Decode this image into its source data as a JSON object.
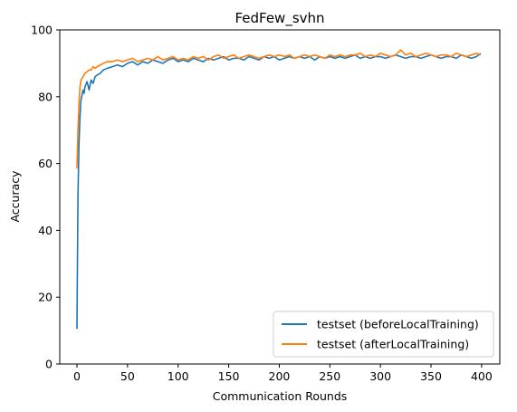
{
  "chart_data": {
    "type": "line",
    "title": "FedFew_svhn",
    "xlabel": "Communication Rounds",
    "ylabel": "Accuracy",
    "xlim": [
      -17,
      418
    ],
    "ylim": [
      0,
      100
    ],
    "xticks": [
      0,
      50,
      100,
      150,
      200,
      250,
      300,
      350,
      400
    ],
    "yticks": [
      0,
      20,
      40,
      60,
      80,
      100
    ],
    "grid": false,
    "legend_position": "lower-right",
    "series": [
      {
        "name": "testset (beforeLocalTraining)",
        "color": "#1f77b4",
        "x": [
          0,
          1,
          2,
          3,
          4,
          5,
          6,
          7,
          8,
          10,
          12,
          14,
          16,
          18,
          20,
          23,
          26,
          30,
          35,
          40,
          45,
          50,
          55,
          60,
          65,
          70,
          75,
          80,
          85,
          90,
          95,
          100,
          105,
          110,
          115,
          120,
          125,
          130,
          135,
          140,
          145,
          150,
          155,
          160,
          165,
          170,
          175,
          180,
          185,
          190,
          195,
          200,
          205,
          210,
          215,
          220,
          225,
          230,
          235,
          240,
          245,
          250,
          255,
          260,
          265,
          270,
          275,
          280,
          285,
          290,
          295,
          300,
          305,
          310,
          315,
          320,
          325,
          330,
          335,
          340,
          345,
          350,
          355,
          360,
          365,
          370,
          375,
          380,
          385,
          390,
          395,
          399
        ],
        "y": [
          10.5,
          50,
          66,
          74,
          79,
          80.5,
          82,
          81,
          83,
          84.5,
          82,
          85,
          84,
          86,
          86.5,
          87,
          88,
          88.5,
          89,
          89.5,
          89,
          90,
          90.5,
          89.5,
          90.5,
          90,
          91,
          90.5,
          90,
          91,
          91.5,
          90.5,
          91,
          90.5,
          91.5,
          91,
          90.5,
          91.5,
          91,
          91.5,
          92,
          91,
          91.5,
          91.5,
          91,
          92,
          91.5,
          91,
          92,
          91.5,
          92,
          91,
          91.5,
          92,
          91.5,
          92,
          91.5,
          92,
          91,
          92,
          91.5,
          92,
          91.5,
          92,
          91.5,
          92,
          92.5,
          91.5,
          92,
          91.5,
          92,
          92,
          91.5,
          92,
          92.5,
          92,
          91.5,
          92,
          92,
          91.5,
          92,
          92.5,
          92,
          91.5,
          92,
          92,
          91.5,
          92.5,
          92,
          91.5,
          92,
          93
        ]
      },
      {
        "name": "testset (afterLocalTraining)",
        "color": "#ff7f0e",
        "x": [
          0,
          1,
          2,
          3,
          4,
          5,
          6,
          7,
          8,
          10,
          12,
          14,
          16,
          18,
          20,
          23,
          26,
          30,
          35,
          40,
          45,
          50,
          55,
          60,
          65,
          70,
          75,
          80,
          85,
          90,
          95,
          100,
          105,
          110,
          115,
          120,
          125,
          130,
          135,
          140,
          145,
          150,
          155,
          160,
          165,
          170,
          175,
          180,
          185,
          190,
          195,
          200,
          205,
          210,
          215,
          220,
          225,
          230,
          235,
          240,
          245,
          250,
          255,
          260,
          265,
          270,
          275,
          280,
          285,
          290,
          295,
          300,
          305,
          310,
          315,
          320,
          325,
          330,
          335,
          340,
          345,
          350,
          355,
          360,
          365,
          370,
          375,
          380,
          385,
          390,
          395,
          399
        ],
        "y": [
          58.5,
          70,
          78,
          83,
          85,
          85.5,
          86,
          86.5,
          87,
          87.5,
          88,
          88,
          89,
          88.5,
          89,
          89.5,
          90,
          90.5,
          90.5,
          91,
          90.5,
          91,
          91.5,
          90.5,
          91,
          91.5,
          91,
          92,
          91,
          91.5,
          92,
          91,
          91.5,
          91,
          92,
          91.5,
          92,
          91,
          92,
          92.5,
          91.5,
          92,
          92.5,
          91.5,
          92,
          92.5,
          92,
          91.5,
          92,
          92.5,
          92,
          92.5,
          92,
          92.5,
          91.5,
          92,
          92.5,
          92,
          92.5,
          92,
          91.5,
          92.5,
          92,
          92.5,
          92,
          92.5,
          92.5,
          93,
          92,
          92.5,
          92,
          93,
          92.5,
          92,
          92.5,
          94,
          92.5,
          93,
          92,
          92.5,
          93,
          92.5,
          92,
          92.5,
          92.5,
          92,
          93,
          92.5,
          92,
          92.5,
          93,
          92.5
        ]
      }
    ]
  }
}
